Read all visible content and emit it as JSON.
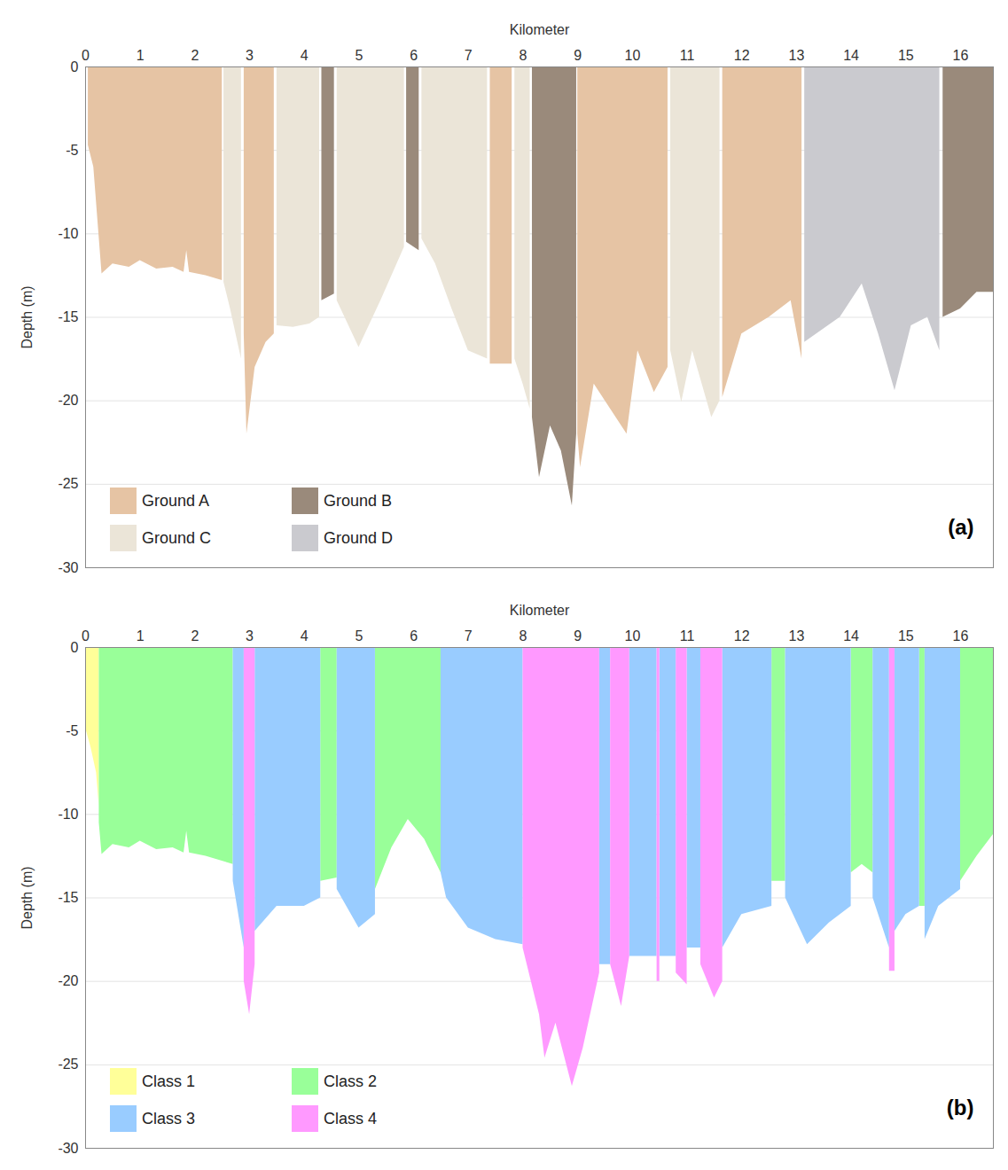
{
  "chart_data": [
    {
      "type": "area",
      "title": "(a)",
      "x_label": "Kilometer",
      "y_label": "Depth (m)",
      "xlim": [
        0,
        16.6
      ],
      "xticks": [
        0,
        1,
        2,
        3,
        4,
        5,
        6,
        7,
        8,
        9,
        10,
        11,
        12,
        13,
        14,
        15,
        16
      ],
      "ylim": [
        -30,
        0
      ],
      "yticks": [
        -30,
        -25,
        -20,
        -15,
        -10,
        -5,
        0
      ],
      "grid": true,
      "legend": "bottom-left",
      "series": [
        {
          "name": "Ground A",
          "color": "#e6c4a4",
          "x": [
            0.05,
            0.15,
            0.3,
            0.5,
            0.8,
            1.0,
            1.3,
            1.6,
            1.8,
            1.85,
            1.9,
            2.2,
            2.5,
            null,
            2.9,
            2.95,
            3.1,
            3.3,
            3.45,
            null,
            7.4,
            7.8,
            null,
            9.0,
            9.05,
            9.3,
            9.6,
            9.9,
            10.1,
            10.4,
            10.65,
            null,
            11.65,
            12.0,
            12.5,
            12.9,
            13.1
          ],
          "values": [
            -4.7,
            -6,
            -12.4,
            -11.8,
            -12,
            -11.6,
            -12.1,
            -12,
            -12.3,
            -11,
            -12.3,
            -12.5,
            -12.8,
            null,
            -16,
            -22,
            -18,
            -16.5,
            -16,
            null,
            -17.8,
            -17.8,
            null,
            -22,
            -24,
            -19,
            -20.5,
            -22,
            -17,
            -19.5,
            -18,
            null,
            -19.8,
            -16,
            -15,
            -14,
            -17.5
          ]
        },
        {
          "name": "Ground B",
          "color": "#9a8a7b",
          "x": [
            4.32,
            4.55,
            null,
            5.87,
            6.1,
            null,
            8.17,
            8.3,
            8.5,
            8.7,
            8.9,
            8.98,
            null,
            15.68,
            16.0,
            16.3,
            16.6
          ],
          "values": [
            -14,
            -13.6,
            null,
            -10.5,
            -11,
            null,
            -21,
            -24.6,
            -21.5,
            -23,
            -26.3,
            -22,
            null,
            -15,
            -14.5,
            -13.5,
            -13.5
          ]
        },
        {
          "name": "Ground C",
          "color": "#ebe5d8",
          "x": [
            2.53,
            2.65,
            2.85,
            null,
            3.5,
            3.8,
            4.1,
            4.28,
            null,
            4.6,
            5.0,
            5.4,
            5.83,
            null,
            6.15,
            6.4,
            6.7,
            7.0,
            7.35,
            null,
            7.85,
            8.0,
            8.13,
            null,
            10.7,
            10.9,
            11.1,
            11.45,
            11.6
          ],
          "values": [
            -12.9,
            -14.5,
            -17.5,
            null,
            -15.5,
            -15.6,
            -15.4,
            -15,
            null,
            -14,
            -16.8,
            -14,
            -10.8,
            null,
            -10.3,
            -11.8,
            -14.5,
            -17,
            -17.5,
            null,
            -17.5,
            -19,
            -20.5,
            null,
            -17,
            -20.1,
            -17,
            -21,
            -20
          ]
        },
        {
          "name": "Ground D",
          "color": "#cacacf",
          "x": [
            13.15,
            13.8,
            14.2,
            14.5,
            14.8,
            15.1,
            15.4,
            15.62
          ],
          "values": [
            -16.5,
            -15,
            -13,
            -16,
            -19.4,
            -15.5,
            -15,
            -17
          ]
        }
      ]
    },
    {
      "type": "area",
      "title": "(b)",
      "x_label": "Kilometer",
      "y_label": "Depth (m)",
      "xlim": [
        0,
        16.6
      ],
      "xticks": [
        0,
        1,
        2,
        3,
        4,
        5,
        6,
        7,
        8,
        9,
        10,
        11,
        12,
        13,
        14,
        15,
        16
      ],
      "ylim": [
        -30,
        0
      ],
      "yticks": [
        -30,
        -25,
        -20,
        -15,
        -10,
        -5,
        0
      ],
      "grid": true,
      "legend": "bottom-left",
      "series": [
        {
          "name": "Class 1",
          "color": "#ffff99",
          "x": [
            0,
            0.1,
            0.2,
            0.25
          ],
          "values": [
            -4.8,
            -6,
            -7.5,
            -9.5
          ]
        },
        {
          "name": "Class 2",
          "color": "#99ff99",
          "x": [
            0.25,
            0.3,
            0.5,
            0.8,
            1.0,
            1.3,
            1.6,
            1.8,
            1.85,
            1.9,
            2.2,
            2.7,
            null,
            4.3,
            4.6,
            null,
            5.3,
            5.6,
            5.9,
            6.2,
            6.5,
            null,
            12.55,
            12.8,
            null,
            14.0,
            14.2,
            14.4,
            null,
            15.25,
            15.35,
            null,
            16.0,
            16.3,
            16.6
          ],
          "values": [
            -10.5,
            -12.4,
            -11.8,
            -12,
            -11.6,
            -12.1,
            -12,
            -12.3,
            -11,
            -12.3,
            -12.5,
            -13,
            null,
            -14,
            -13.8,
            null,
            -14.5,
            -12,
            -10.3,
            -11.5,
            -13.5,
            null,
            -14,
            -14,
            null,
            -13.5,
            -13,
            -13.5,
            null,
            -15.5,
            -15.5,
            null,
            -14,
            -12.5,
            -11.2
          ]
        },
        {
          "name": "Class 3",
          "color": "#99ccff",
          "x": [
            2.7,
            2.9,
            null,
            3.1,
            3.5,
            4.0,
            4.3,
            null,
            4.6,
            5.0,
            5.3,
            null,
            6.5,
            6.6,
            7.0,
            7.5,
            8.0,
            null,
            9.4,
            9.6,
            null,
            9.95,
            10.45,
            null,
            10.5,
            10.8,
            null,
            11.0,
            11.25,
            null,
            11.65,
            12.0,
            12.55,
            null,
            12.8,
            13.2,
            13.6,
            14.0,
            null,
            14.4,
            14.7,
            null,
            14.8,
            15.0,
            15.25,
            null,
            15.35,
            15.6,
            16.0
          ],
          "values": [
            -14,
            -18,
            null,
            -17,
            -15.5,
            -15.5,
            -15,
            null,
            -14.5,
            -16.8,
            -16,
            null,
            -13.5,
            -15,
            -16.8,
            -17.5,
            -17.8,
            null,
            -19,
            -19,
            null,
            -18.5,
            -18.5,
            null,
            -18.5,
            -18.5,
            null,
            -18,
            -18,
            null,
            -18,
            -16,
            -15.5,
            null,
            -15,
            -17.8,
            -16.5,
            -15.5,
            null,
            -15,
            -18,
            null,
            -17,
            -16,
            -15.5,
            null,
            -17.5,
            -15.5,
            -14.5
          ]
        },
        {
          "name": "Class 4",
          "color": "#ff99ff",
          "x": [
            2.9,
            3.0,
            3.1,
            null,
            8.0,
            8.3,
            8.4,
            8.6,
            8.9,
            9.1,
            9.4,
            null,
            9.6,
            9.8,
            9.95,
            null,
            10.45,
            10.5,
            null,
            10.8,
            11.0,
            null,
            11.25,
            11.5,
            11.65,
            null,
            14.7,
            14.8
          ],
          "values": [
            -20,
            -22,
            -19,
            null,
            -18,
            -22,
            -24.6,
            -22.5,
            -26.3,
            -24,
            -19.5,
            null,
            -19,
            -21.5,
            -18.5,
            null,
            -20,
            -20,
            null,
            -19.5,
            -20.2,
            null,
            -19,
            -21,
            -20,
            null,
            -19.4,
            -19.4
          ]
        }
      ]
    }
  ]
}
